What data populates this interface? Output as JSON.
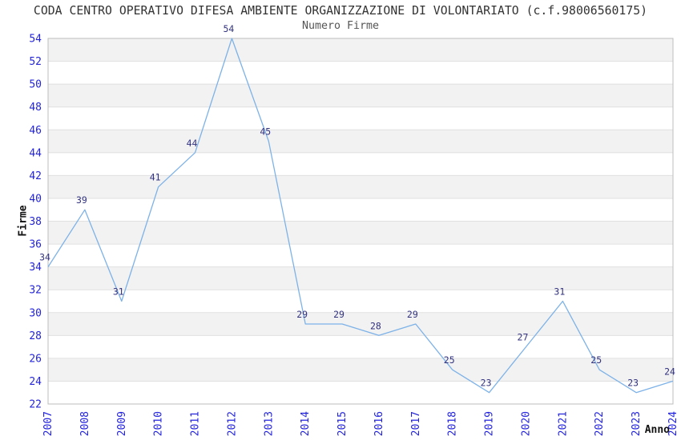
{
  "chart_data": {
    "type": "line",
    "title": "CODA CENTRO OPERATIVO DIFESA AMBIENTE ORGANIZZAZIONE DI VOLONTARIATO (c.f.98006560175)",
    "subtitle": "Numero Firme",
    "xlabel": "Anno",
    "ylabel": "Firme",
    "x": [
      "2007",
      "2008",
      "2009",
      "2010",
      "2011",
      "2012",
      "2013",
      "2014",
      "2015",
      "2016",
      "2017",
      "2018",
      "2019",
      "2020",
      "2021",
      "2022",
      "2023",
      "2024"
    ],
    "series": [
      {
        "name": "Numero Firme",
        "values": [
          34,
          39,
          31,
          41,
          44,
          54,
          45,
          29,
          29,
          28,
          29,
          25,
          23,
          27,
          31,
          25,
          23,
          24
        ]
      }
    ],
    "ylim": [
      22,
      54
    ],
    "ytick_step": 2,
    "ytick_labels": [
      "22",
      "24",
      "26",
      "28",
      "30",
      "32",
      "34",
      "36",
      "38",
      "40",
      "42",
      "44",
      "46",
      "48",
      "50",
      "52",
      "54"
    ],
    "grid": "horizontal-alternating-bands",
    "legend_position": "none",
    "point_labels_shown": true,
    "colors": {
      "line": "#7db2e8",
      "tick_label": "#2323dd",
      "point_label": "#333380",
      "band_gray": "#f2f2f2",
      "band_white": "#ffffff",
      "gridline": "#e0e0e0",
      "plot_border": "#bdbdbd",
      "title_text": "#333333",
      "subtitle_text": "#555555",
      "axis_title_text": "#111111",
      "background": "#ffffff"
    }
  }
}
